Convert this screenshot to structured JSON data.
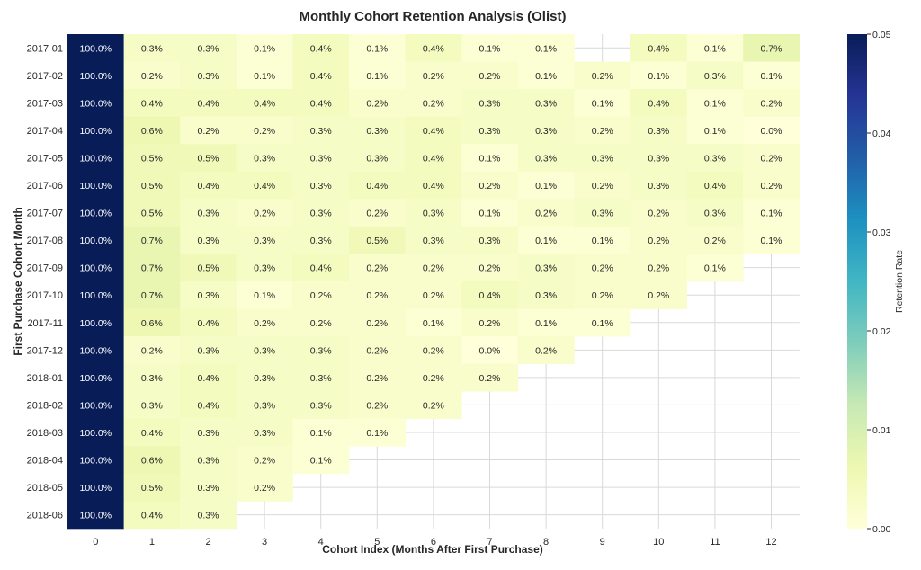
{
  "chart_data": {
    "type": "heatmap",
    "title": "Monthly Cohort Retention Analysis (Olist)",
    "xlabel": "Cohort Index (Months After First Purchase)",
    "ylabel": "First Purchase Cohort Month",
    "x_categories": [
      "0",
      "1",
      "2",
      "3",
      "4",
      "5",
      "6",
      "7",
      "8",
      "9",
      "10",
      "11",
      "12"
    ],
    "y_categories": [
      "2017-01",
      "2017-02",
      "2017-03",
      "2017-04",
      "2017-05",
      "2017-06",
      "2017-07",
      "2017-08",
      "2017-09",
      "2017-10",
      "2017-11",
      "2017-12",
      "2018-01",
      "2018-02",
      "2018-03",
      "2018-04",
      "2018-05",
      "2018-06"
    ],
    "values": [
      [
        1.0,
        0.003,
        0.003,
        0.001,
        0.004,
        0.001,
        0.004,
        0.001,
        0.001,
        null,
        0.004,
        0.001,
        0.007
      ],
      [
        1.0,
        0.002,
        0.003,
        0.001,
        0.004,
        0.001,
        0.002,
        0.002,
        0.001,
        0.002,
        0.001,
        0.003,
        0.001
      ],
      [
        1.0,
        0.004,
        0.004,
        0.004,
        0.004,
        0.002,
        0.002,
        0.003,
        0.003,
        0.001,
        0.004,
        0.001,
        0.002
      ],
      [
        1.0,
        0.006,
        0.002,
        0.002,
        0.003,
        0.003,
        0.004,
        0.003,
        0.003,
        0.002,
        0.003,
        0.001,
        0.0
      ],
      [
        1.0,
        0.005,
        0.005,
        0.003,
        0.003,
        0.003,
        0.004,
        0.001,
        0.003,
        0.003,
        0.003,
        0.003,
        0.002
      ],
      [
        1.0,
        0.005,
        0.004,
        0.004,
        0.003,
        0.004,
        0.004,
        0.002,
        0.001,
        0.002,
        0.003,
        0.004,
        0.002
      ],
      [
        1.0,
        0.005,
        0.003,
        0.002,
        0.003,
        0.002,
        0.003,
        0.001,
        0.002,
        0.003,
        0.002,
        0.003,
        0.001
      ],
      [
        1.0,
        0.007,
        0.003,
        0.003,
        0.003,
        0.005,
        0.003,
        0.003,
        0.001,
        0.001,
        0.002,
        0.002,
        0.001
      ],
      [
        1.0,
        0.007,
        0.005,
        0.003,
        0.004,
        0.002,
        0.002,
        0.002,
        0.003,
        0.002,
        0.002,
        0.001,
        null
      ],
      [
        1.0,
        0.007,
        0.003,
        0.001,
        0.002,
        0.002,
        0.002,
        0.004,
        0.003,
        0.002,
        0.002,
        null,
        null
      ],
      [
        1.0,
        0.006,
        0.004,
        0.002,
        0.002,
        0.002,
        0.001,
        0.002,
        0.001,
        0.001,
        null,
        null,
        null
      ],
      [
        1.0,
        0.002,
        0.003,
        0.003,
        0.003,
        0.002,
        0.002,
        0.0,
        0.002,
        null,
        null,
        null,
        null
      ],
      [
        1.0,
        0.003,
        0.004,
        0.003,
        0.003,
        0.002,
        0.002,
        0.002,
        null,
        null,
        null,
        null,
        null
      ],
      [
        1.0,
        0.003,
        0.004,
        0.003,
        0.003,
        0.002,
        0.002,
        null,
        null,
        null,
        null,
        null,
        null
      ],
      [
        1.0,
        0.004,
        0.003,
        0.003,
        0.001,
        0.001,
        null,
        null,
        null,
        null,
        null,
        null,
        null
      ],
      [
        1.0,
        0.006,
        0.003,
        0.002,
        0.001,
        null,
        null,
        null,
        null,
        null,
        null,
        null,
        null
      ],
      [
        1.0,
        0.005,
        0.003,
        0.002,
        null,
        null,
        null,
        null,
        null,
        null,
        null,
        null,
        null
      ],
      [
        1.0,
        0.004,
        0.003,
        null,
        null,
        null,
        null,
        null,
        null,
        null,
        null,
        null,
        null
      ]
    ],
    "value_format": "percent, 1 decimal",
    "colormap": "YlGnBu",
    "color_range": [
      0.0,
      0.05
    ],
    "colorbar": {
      "label": "Retention Rate",
      "ticks": [
        "0.00",
        "0.01",
        "0.02",
        "0.03",
        "0.04",
        "0.05"
      ],
      "placement": "right"
    },
    "grid": true
  }
}
